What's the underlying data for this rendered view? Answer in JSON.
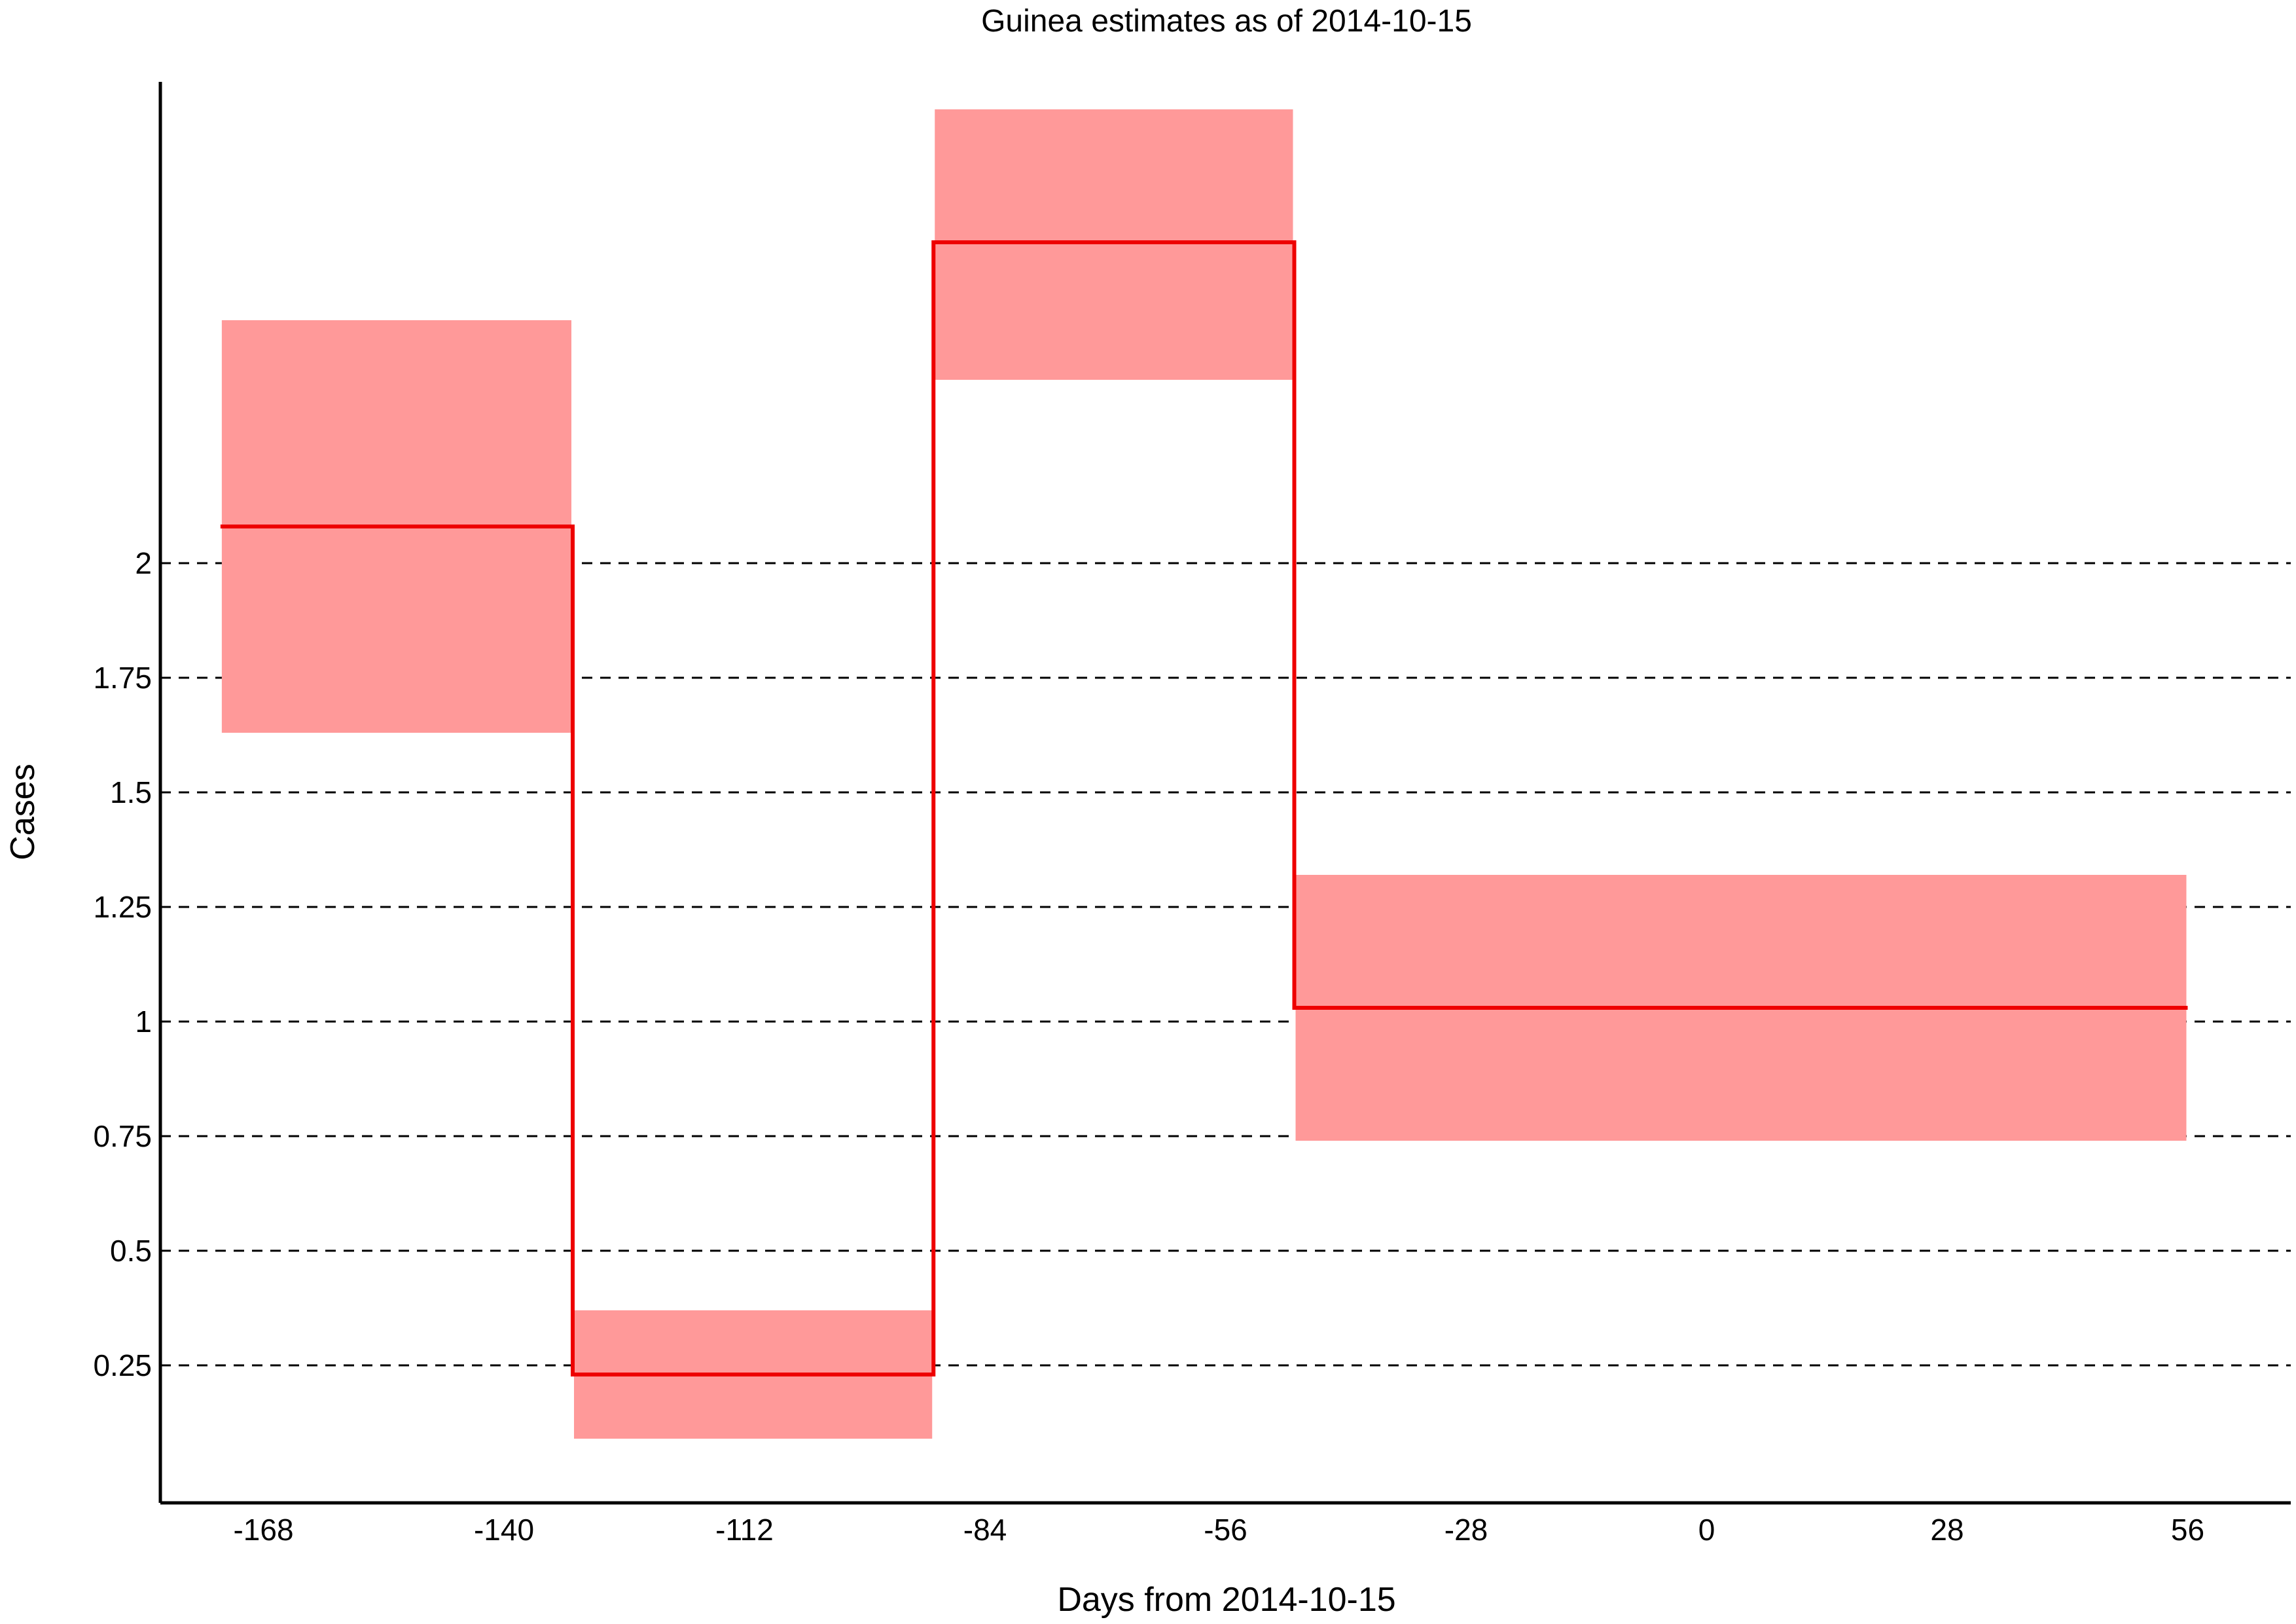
{
  "chart_data": {
    "type": "line",
    "title": "Guinea estimates as of 2014-10-15",
    "xlabel": "Days from 2014-10-15",
    "ylabel": "Cases",
    "xlim": [
      -180,
      68
    ],
    "ylim": [
      -0.05,
      3.05
    ],
    "x_ticks": [
      -168,
      -140,
      -112,
      -84,
      -56,
      -28,
      0,
      28,
      56
    ],
    "y_ticks": [
      0.25,
      0.5,
      0.75,
      1,
      1.25,
      1.5,
      1.75,
      2
    ],
    "grid": "horizontal-dashed",
    "colors": {
      "line": "#ee0000",
      "band": "#ff9999",
      "grid": "#000000",
      "axis": "#000000"
    },
    "series": [
      {
        "steps": [
          {
            "x_start": -173,
            "x_end": -132,
            "value": 2.08,
            "lower": 1.63,
            "upper": 2.53
          },
          {
            "x_start": -132,
            "x_end": -90,
            "value": 0.23,
            "lower": 0.09,
            "upper": 0.37
          },
          {
            "x_start": -90,
            "x_end": -48,
            "value": 2.7,
            "lower": 2.4,
            "upper": 2.99
          },
          {
            "x_start": -48,
            "x_end": 56,
            "value": 1.03,
            "lower": 0.74,
            "upper": 1.32
          }
        ]
      }
    ]
  }
}
